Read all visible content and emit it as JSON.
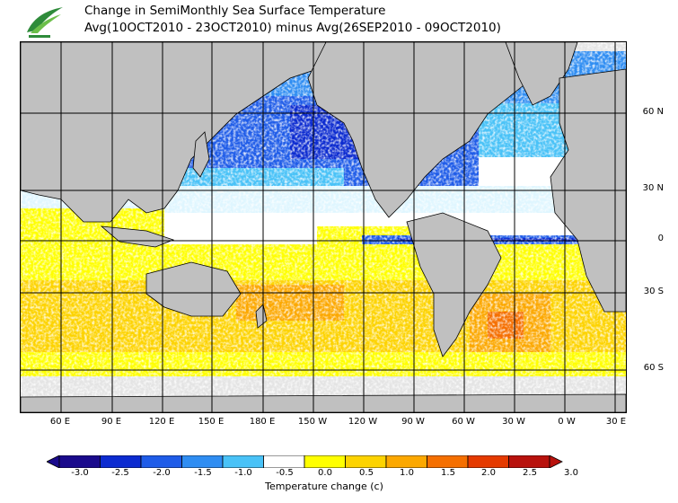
{
  "title": {
    "line1": "Change in SemiMonthly Sea Surface Temperature",
    "line2": "Avg(10OCT2010 - 23OCT2010) minus Avg(26SEP2010 - 09OCT2010)"
  },
  "map": {
    "lat_labels": [
      "60 N",
      "30 N",
      "0",
      "30 S",
      "60 S"
    ],
    "lon_labels": [
      "60 E",
      "90 E",
      "120 E",
      "150 E",
      "180 E",
      "150 W",
      "120 W",
      "90 W",
      "60 W",
      "30 W",
      "0 W",
      "30 E"
    ],
    "land_color": "#c0c0c0",
    "ice_color": "#e4e4e4",
    "grid_color": "#000000"
  },
  "colorbar": {
    "ticks": [
      "-3.0",
      "-2.5",
      "-2.0",
      "-1.5",
      "-1.0",
      "-0.5",
      "0.0",
      "0.5",
      "1.0",
      "1.5",
      "2.0",
      "2.5",
      "3.0"
    ],
    "colors": [
      "#1a0a8c",
      "#0c2bd0",
      "#1f5ce8",
      "#2f8df2",
      "#49c2f7",
      "#ffffff",
      "#ffff00",
      "#fdd300",
      "#fca800",
      "#f56f00",
      "#e53a00",
      "#b8120d"
    ],
    "label": "Temperature change  (c)"
  }
}
